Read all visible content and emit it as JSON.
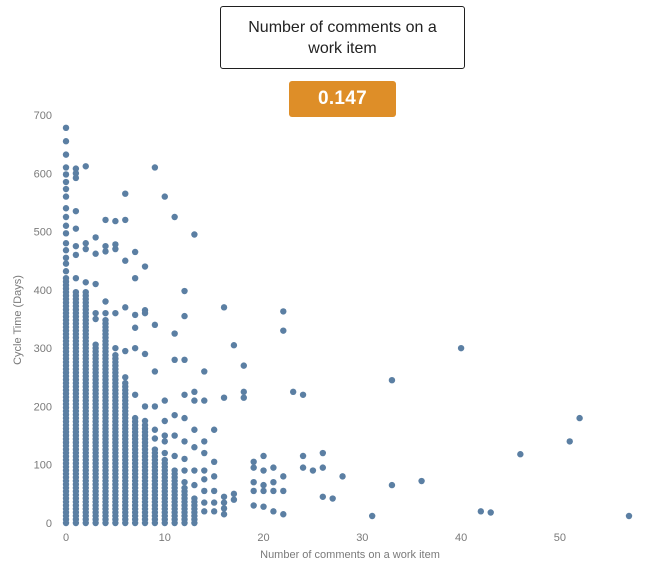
{
  "header": {
    "title": "Number of comments on a work item",
    "metric_value": "0.147",
    "metric_color": "#DE8E28"
  },
  "chart_data": {
    "type": "scatter",
    "title": "Number of comments on a work item",
    "xlabel": "Number of comments on a work item",
    "ylabel": "Cycle Time (Days)",
    "xlim": [
      0,
      57
    ],
    "ylim": [
      0,
      700
    ],
    "x_ticks": [
      0,
      10,
      20,
      30,
      40,
      50
    ],
    "y_ticks": [
      0,
      100,
      200,
      300,
      400,
      500,
      600,
      700
    ],
    "point_color": "#5B7FA3",
    "grid": false,
    "legend": "none",
    "columns": [
      {
        "x": 0,
        "min": 0,
        "max": 420
      },
      {
        "x": 1,
        "min": 0,
        "max": 400
      },
      {
        "x": 2,
        "min": 0,
        "max": 400
      },
      {
        "x": 3,
        "min": 0,
        "max": 310
      },
      {
        "x": 4,
        "min": 0,
        "max": 350
      },
      {
        "x": 5,
        "min": 0,
        "max": 290
      },
      {
        "x": 6,
        "min": 0,
        "max": 240
      },
      {
        "x": 7,
        "min": 0,
        "max": 180
      },
      {
        "x": 8,
        "min": 0,
        "max": 170
      },
      {
        "x": 9,
        "min": 0,
        "max": 130
      },
      {
        "x": 10,
        "min": 0,
        "max": 110
      },
      {
        "x": 11,
        "min": 0,
        "max": 95
      },
      {
        "x": 12,
        "min": 0,
        "max": 60
      },
      {
        "x": 13,
        "min": 0,
        "max": 45
      }
    ],
    "points": [
      [
        0,
        678
      ],
      [
        0,
        655
      ],
      [
        0,
        632
      ],
      [
        0,
        610
      ],
      [
        0,
        598
      ],
      [
        0,
        585
      ],
      [
        0,
        573
      ],
      [
        0,
        560
      ],
      [
        0,
        540
      ],
      [
        0,
        525
      ],
      [
        0,
        510
      ],
      [
        0,
        497
      ],
      [
        0,
        480
      ],
      [
        0,
        468
      ],
      [
        0,
        455
      ],
      [
        0,
        445
      ],
      [
        0,
        432
      ],
      [
        1,
        608
      ],
      [
        1,
        600
      ],
      [
        1,
        592
      ],
      [
        1,
        535
      ],
      [
        1,
        505
      ],
      [
        1,
        475
      ],
      [
        1,
        460
      ],
      [
        1,
        420
      ],
      [
        2,
        612
      ],
      [
        2,
        480
      ],
      [
        2,
        470
      ],
      [
        2,
        413
      ],
      [
        3,
        490
      ],
      [
        3,
        462
      ],
      [
        3,
        410
      ],
      [
        3,
        360
      ],
      [
        3,
        350
      ],
      [
        4,
        520
      ],
      [
        4,
        475
      ],
      [
        4,
        466
      ],
      [
        4,
        380
      ],
      [
        4,
        360
      ],
      [
        5,
        518
      ],
      [
        5,
        478
      ],
      [
        5,
        470
      ],
      [
        5,
        360
      ],
      [
        5,
        300
      ],
      [
        6,
        565
      ],
      [
        6,
        520
      ],
      [
        6,
        450
      ],
      [
        6,
        370
      ],
      [
        6,
        295
      ],
      [
        6,
        250
      ],
      [
        7,
        465
      ],
      [
        7,
        420
      ],
      [
        7,
        357
      ],
      [
        7,
        335
      ],
      [
        7,
        300
      ],
      [
        7,
        220
      ],
      [
        8,
        440
      ],
      [
        8,
        365
      ],
      [
        8,
        360
      ],
      [
        8,
        290
      ],
      [
        8,
        200
      ],
      [
        8,
        175
      ],
      [
        9,
        610
      ],
      [
        9,
        340
      ],
      [
        9,
        260
      ],
      [
        9,
        200
      ],
      [
        9,
        160
      ],
      [
        9,
        145
      ],
      [
        10,
        560
      ],
      [
        10,
        210
      ],
      [
        10,
        175
      ],
      [
        10,
        150
      ],
      [
        10,
        140
      ],
      [
        10,
        120
      ],
      [
        11,
        525
      ],
      [
        11,
        325
      ],
      [
        11,
        280
      ],
      [
        11,
        185
      ],
      [
        11,
        150
      ],
      [
        11,
        115
      ],
      [
        12,
        398
      ],
      [
        12,
        355
      ],
      [
        12,
        280
      ],
      [
        12,
        220
      ],
      [
        12,
        180
      ],
      [
        12,
        140
      ],
      [
        12,
        110
      ],
      [
        12,
        90
      ],
      [
        12,
        70
      ],
      [
        13,
        495
      ],
      [
        13,
        225
      ],
      [
        13,
        210
      ],
      [
        13,
        160
      ],
      [
        13,
        130
      ],
      [
        13,
        90
      ],
      [
        13,
        65
      ],
      [
        14,
        260
      ],
      [
        14,
        210
      ],
      [
        14,
        140
      ],
      [
        14,
        120
      ],
      [
        14,
        90
      ],
      [
        14,
        75
      ],
      [
        14,
        55
      ],
      [
        14,
        35
      ],
      [
        14,
        20
      ],
      [
        15,
        160
      ],
      [
        15,
        105
      ],
      [
        15,
        80
      ],
      [
        15,
        55
      ],
      [
        15,
        35
      ],
      [
        15,
        20
      ],
      [
        16,
        370
      ],
      [
        16,
        215
      ],
      [
        16,
        45
      ],
      [
        16,
        35
      ],
      [
        16,
        25
      ],
      [
        16,
        15
      ],
      [
        17,
        305
      ],
      [
        17,
        50
      ],
      [
        17,
        40
      ],
      [
        18,
        270
      ],
      [
        18,
        225
      ],
      [
        18,
        215
      ],
      [
        19,
        105
      ],
      [
        19,
        95
      ],
      [
        19,
        70
      ],
      [
        19,
        55
      ],
      [
        19,
        30
      ],
      [
        20,
        115
      ],
      [
        20,
        90
      ],
      [
        20,
        65
      ],
      [
        20,
        55
      ],
      [
        20,
        28
      ],
      [
        21,
        95
      ],
      [
        21,
        70
      ],
      [
        21,
        55
      ],
      [
        21,
        20
      ],
      [
        22,
        363
      ],
      [
        22,
        330
      ],
      [
        22,
        80
      ],
      [
        22,
        55
      ],
      [
        22,
        15
      ],
      [
        23,
        225
      ],
      [
        24,
        220
      ],
      [
        24,
        115
      ],
      [
        24,
        95
      ],
      [
        25,
        90
      ],
      [
        26,
        120
      ],
      [
        26,
        95
      ],
      [
        26,
        45
      ],
      [
        27,
        42
      ],
      [
        28,
        80
      ],
      [
        31,
        12
      ],
      [
        33,
        245
      ],
      [
        33,
        65
      ],
      [
        36,
        72
      ],
      [
        40,
        300
      ],
      [
        42,
        20
      ],
      [
        43,
        18
      ],
      [
        46,
        118
      ],
      [
        51,
        140
      ],
      [
        52,
        180
      ],
      [
        57,
        12
      ]
    ]
  }
}
